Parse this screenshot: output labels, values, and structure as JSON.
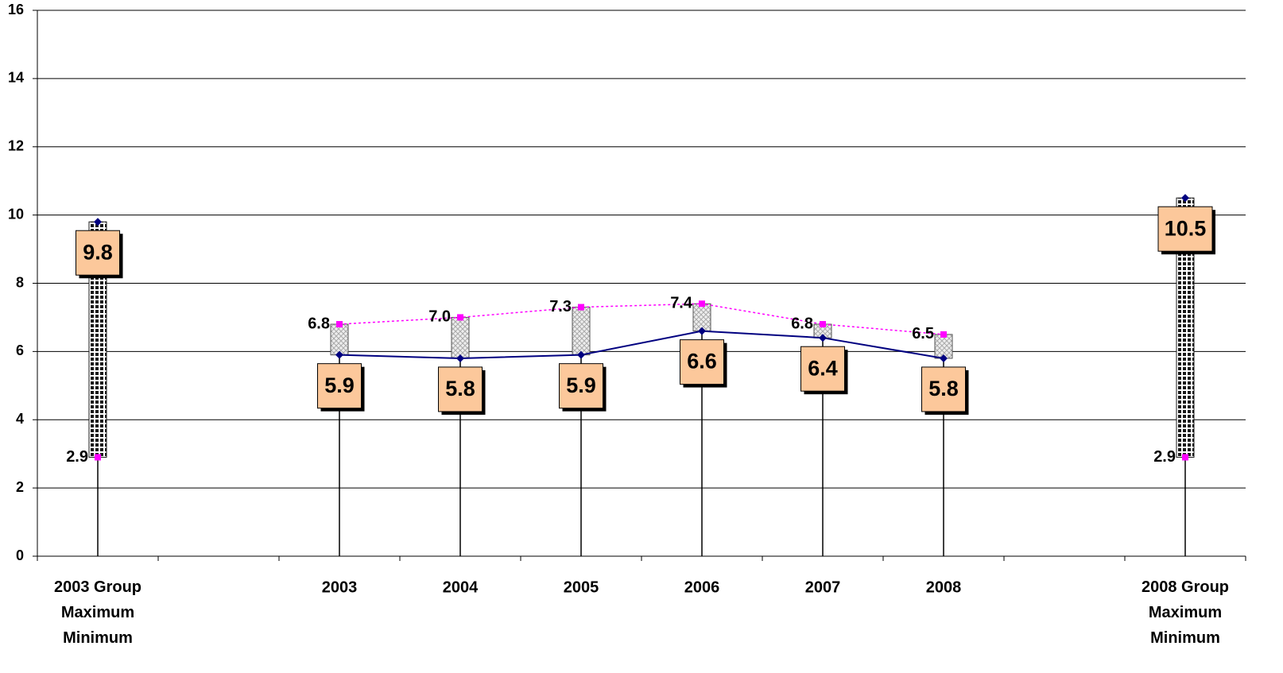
{
  "chart_data": {
    "type": "line",
    "categories": [
      [
        "2003 Group",
        "Maximum",
        "Minimum"
      ],
      null,
      "2003",
      "2004",
      "2005",
      "2006",
      "2007",
      "2008",
      null,
      [
        "2008 Group",
        "Maximum",
        "Minimum"
      ]
    ],
    "series": [
      {
        "color": "#000080",
        "line": "solid",
        "marker": "diamond",
        "values": [
          9.8,
          null,
          5.9,
          5.8,
          5.9,
          6.6,
          6.4,
          5.8,
          null,
          10.5
        ],
        "value_labels": [
          "9.8",
          null,
          "5.9",
          "5.8",
          "5.9",
          "6.6",
          "6.4",
          "5.8",
          null,
          "10.5"
        ]
      },
      {
        "color": "#ff00ff",
        "line": "dotted",
        "marker": "square",
        "values": [
          2.9,
          null,
          6.8,
          7.0,
          7.3,
          7.4,
          6.8,
          6.5,
          null,
          2.9
        ],
        "value_labels": [
          "2.9",
          null,
          "6.8",
          "7.0",
          "7.3",
          "7.4",
          "6.8",
          "6.5",
          null,
          "2.9"
        ]
      }
    ],
    "up_bar_fill": "#1a1a1a",
    "down_bar_fill": "#cfcfcf",
    "ylim": [
      0,
      16
    ],
    "yticks": [
      0,
      2,
      4,
      6,
      8,
      10,
      12,
      14,
      16
    ],
    "grid": true
  }
}
